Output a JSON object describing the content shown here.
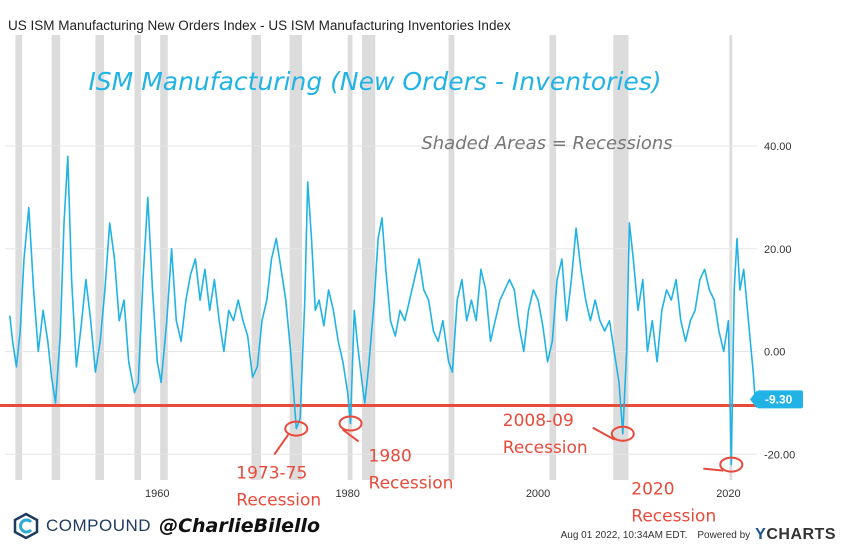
{
  "header": {
    "title": "US ISM Manufacturing New Orders Index - US ISM Manufacturing Inventories Index"
  },
  "footer": {
    "brand": "COMPOUND",
    "handle": "@CharlieBilello",
    "timestamp": "Aug 01 2022, 10:34AM EDT.",
    "powered_by": "Powered by",
    "provider_y": "Y",
    "provider_rest": "CHARTS"
  },
  "colors": {
    "series": "#21b3e6",
    "threshold": "#e84a3b",
    "recession": "#dcdcdc",
    "annotation": "#e84a3b",
    "badge": "#21b3e6"
  },
  "chart_data": {
    "type": "line",
    "title": "ISM Manufacturing (New Orders - Inventories)",
    "note": "Shaded Areas = Recessions",
    "xlim": [
      1944,
      2023
    ],
    "ylim": [
      -25,
      47
    ],
    "x_ticks": [
      1960,
      1980,
      2000,
      2020
    ],
    "y_ticks": [
      -20,
      0,
      20,
      40
    ],
    "y_tick_labels": [
      "-20.00",
      "0.00",
      "20.00",
      "40.00"
    ],
    "last_value": -9.3,
    "last_value_label": "-9.30",
    "threshold": -10.5,
    "recessions": [
      [
        1945.1,
        1945.8
      ],
      [
        1948.9,
        1949.8
      ],
      [
        1953.5,
        1954.4
      ],
      [
        1957.6,
        1958.3
      ],
      [
        1960.3,
        1961.1
      ],
      [
        1969.9,
        1970.9
      ],
      [
        1973.9,
        1975.2
      ],
      [
        1980.0,
        1980.5
      ],
      [
        1981.5,
        1982.9
      ],
      [
        1990.6,
        1991.2
      ],
      [
        2001.2,
        2001.9
      ],
      [
        2007.9,
        2009.5
      ],
      [
        2020.1,
        2020.4
      ]
    ],
    "series": [
      {
        "points": [
          [
            1944.5,
            7
          ],
          [
            1944.8,
            2
          ],
          [
            1945.2,
            -3
          ],
          [
            1945.6,
            4
          ],
          [
            1946.0,
            18
          ],
          [
            1946.5,
            28
          ],
          [
            1947.0,
            12
          ],
          [
            1947.5,
            0
          ],
          [
            1948.0,
            8
          ],
          [
            1948.5,
            2
          ],
          [
            1948.9,
            -5
          ],
          [
            1949.3,
            -10
          ],
          [
            1949.8,
            3
          ],
          [
            1950.2,
            25
          ],
          [
            1950.6,
            38
          ],
          [
            1951.0,
            14
          ],
          [
            1951.5,
            -3
          ],
          [
            1952.0,
            5
          ],
          [
            1952.5,
            14
          ],
          [
            1953.0,
            6
          ],
          [
            1953.5,
            -4
          ],
          [
            1954.0,
            2
          ],
          [
            1954.5,
            12
          ],
          [
            1955.0,
            25
          ],
          [
            1955.5,
            18
          ],
          [
            1956.0,
            6
          ],
          [
            1956.5,
            10
          ],
          [
            1957.0,
            -2
          ],
          [
            1957.6,
            -8
          ],
          [
            1958.0,
            -6
          ],
          [
            1958.5,
            14
          ],
          [
            1959.0,
            30
          ],
          [
            1959.5,
            12
          ],
          [
            1960.0,
            -2
          ],
          [
            1960.4,
            -6
          ],
          [
            1961.0,
            6
          ],
          [
            1961.5,
            20
          ],
          [
            1962.0,
            6
          ],
          [
            1962.5,
            2
          ],
          [
            1963.0,
            10
          ],
          [
            1963.5,
            15
          ],
          [
            1964.0,
            18
          ],
          [
            1964.5,
            10
          ],
          [
            1965.0,
            16
          ],
          [
            1965.5,
            8
          ],
          [
            1966.0,
            14
          ],
          [
            1966.5,
            6
          ],
          [
            1967.0,
            0
          ],
          [
            1967.5,
            8
          ],
          [
            1968.0,
            6
          ],
          [
            1968.5,
            10
          ],
          [
            1969.0,
            6
          ],
          [
            1969.5,
            3
          ],
          [
            1970.0,
            -5
          ],
          [
            1970.5,
            -3
          ],
          [
            1971.0,
            6
          ],
          [
            1971.5,
            10
          ],
          [
            1972.0,
            18
          ],
          [
            1972.5,
            22
          ],
          [
            1973.0,
            16
          ],
          [
            1973.5,
            10
          ],
          [
            1974.0,
            0
          ],
          [
            1974.6,
            -15
          ],
          [
            1975.0,
            -13
          ],
          [
            1975.5,
            10
          ],
          [
            1975.8,
            33
          ],
          [
            1976.2,
            22
          ],
          [
            1976.6,
            8
          ],
          [
            1977.0,
            10
          ],
          [
            1977.5,
            5
          ],
          [
            1978.0,
            12
          ],
          [
            1978.5,
            8
          ],
          [
            1979.0,
            2
          ],
          [
            1979.5,
            -2
          ],
          [
            1980.0,
            -8
          ],
          [
            1980.3,
            -14
          ],
          [
            1980.7,
            8
          ],
          [
            1981.0,
            2
          ],
          [
            1981.5,
            -6
          ],
          [
            1981.8,
            -10
          ],
          [
            1982.2,
            -3
          ],
          [
            1982.8,
            10
          ],
          [
            1983.2,
            22
          ],
          [
            1983.6,
            26
          ],
          [
            1984.0,
            16
          ],
          [
            1984.5,
            6
          ],
          [
            1985.0,
            3
          ],
          [
            1985.5,
            8
          ],
          [
            1986.0,
            6
          ],
          [
            1986.5,
            10
          ],
          [
            1987.0,
            14
          ],
          [
            1987.5,
            18
          ],
          [
            1988.0,
            12
          ],
          [
            1988.5,
            10
          ],
          [
            1989.0,
            4
          ],
          [
            1989.5,
            2
          ],
          [
            1990.0,
            6
          ],
          [
            1990.6,
            -2
          ],
          [
            1991.0,
            -4
          ],
          [
            1991.5,
            10
          ],
          [
            1992.0,
            14
          ],
          [
            1992.5,
            6
          ],
          [
            1993.0,
            10
          ],
          [
            1993.5,
            6
          ],
          [
            1994.0,
            16
          ],
          [
            1994.5,
            12
          ],
          [
            1995.0,
            2
          ],
          [
            1995.5,
            6
          ],
          [
            1996.0,
            10
          ],
          [
            1996.5,
            12
          ],
          [
            1997.0,
            14
          ],
          [
            1997.5,
            12
          ],
          [
            1998.0,
            5
          ],
          [
            1998.5,
            0
          ],
          [
            1999.0,
            8
          ],
          [
            1999.5,
            12
          ],
          [
            2000.0,
            10
          ],
          [
            2000.5,
            5
          ],
          [
            2001.0,
            -2
          ],
          [
            2001.5,
            2
          ],
          [
            2002.0,
            14
          ],
          [
            2002.5,
            18
          ],
          [
            2003.0,
            6
          ],
          [
            2003.5,
            14
          ],
          [
            2004.0,
            24
          ],
          [
            2004.5,
            16
          ],
          [
            2005.0,
            10
          ],
          [
            2005.5,
            6
          ],
          [
            2006.0,
            10
          ],
          [
            2006.5,
            6
          ],
          [
            2007.0,
            4
          ],
          [
            2007.5,
            6
          ],
          [
            2008.0,
            0
          ],
          [
            2008.5,
            -6
          ],
          [
            2008.9,
            -16
          ],
          [
            2009.3,
            0
          ],
          [
            2009.6,
            25
          ],
          [
            2010.0,
            18
          ],
          [
            2010.5,
            8
          ],
          [
            2011.0,
            14
          ],
          [
            2011.5,
            0
          ],
          [
            2012.0,
            6
          ],
          [
            2012.5,
            -2
          ],
          [
            2013.0,
            8
          ],
          [
            2013.5,
            12
          ],
          [
            2014.0,
            10
          ],
          [
            2014.5,
            14
          ],
          [
            2015.0,
            6
          ],
          [
            2015.5,
            2
          ],
          [
            2016.0,
            6
          ],
          [
            2016.5,
            8
          ],
          [
            2017.0,
            14
          ],
          [
            2017.5,
            16
          ],
          [
            2018.0,
            12
          ],
          [
            2018.5,
            10
          ],
          [
            2019.0,
            4
          ],
          [
            2019.5,
            0
          ],
          [
            2020.0,
            6
          ],
          [
            2020.3,
            -22
          ],
          [
            2020.6,
            12
          ],
          [
            2020.9,
            22
          ],
          [
            2021.2,
            12
          ],
          [
            2021.6,
            16
          ],
          [
            2022.0,
            8
          ],
          [
            2022.3,
            2
          ],
          [
            2022.6,
            -4
          ],
          [
            2022.8,
            -9.3
          ]
        ]
      }
    ],
    "annotations": [
      {
        "text": "1973-75 Recession",
        "line1": "1973-75",
        "line2": "Recession",
        "x": 1974.6,
        "y": -15
      },
      {
        "text": "1980 Recession",
        "line1": "1980",
        "line2": "Recession",
        "x": 1980.3,
        "y": -14
      },
      {
        "text": "2008-09 Recession",
        "line1": "2008-09",
        "line2": "Recession",
        "x": 2008.9,
        "y": -16
      },
      {
        "text": "2020 Recession",
        "line1": "2020",
        "line2": "Recession",
        "x": 2020.3,
        "y": -22
      }
    ]
  }
}
